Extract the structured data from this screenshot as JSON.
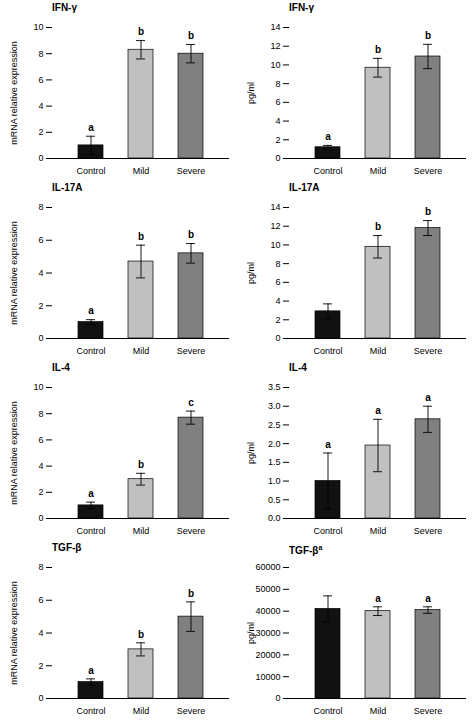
{
  "chart_data": [
    {
      "type": "bar",
      "title": "IFN-γ",
      "ylabel": "mRNA relative expression",
      "categories": [
        "Control",
        "Mild",
        "Severe"
      ],
      "values": [
        1.0,
        8.3,
        8.0
      ],
      "errors": [
        0.7,
        0.7,
        0.7
      ],
      "annotations": [
        "a",
        "b",
        "b"
      ],
      "colors": [
        "#111111",
        "#c0c0c0",
        "#808080"
      ],
      "ylim": [
        0,
        10
      ],
      "yticks": [
        0,
        2,
        4,
        6,
        8,
        10
      ]
    },
    {
      "type": "bar",
      "title": "IFN-γ",
      "ylabel": "pg/ml",
      "categories": [
        "Control",
        "Mild",
        "Severe"
      ],
      "values": [
        1.2,
        9.7,
        10.9
      ],
      "errors": [
        0.2,
        1.0,
        1.3
      ],
      "annotations": [
        "a",
        "b",
        "b"
      ],
      "colors": [
        "#111111",
        "#c0c0c0",
        "#808080"
      ],
      "ylim": [
        0,
        14
      ],
      "yticks": [
        0,
        2,
        4,
        6,
        8,
        10,
        12,
        14
      ]
    },
    {
      "type": "bar",
      "title": "IL-17A",
      "ylabel": "mRNA relative expression",
      "categories": [
        "Control",
        "Mild",
        "Severe"
      ],
      "values": [
        1.0,
        4.7,
        5.2
      ],
      "errors": [
        0.15,
        1.0,
        0.6
      ],
      "annotations": [
        "a",
        "b",
        "b"
      ],
      "colors": [
        "#111111",
        "#c0c0c0",
        "#808080"
      ],
      "ylim": [
        0,
        8
      ],
      "yticks": [
        0,
        2,
        4,
        6,
        8
      ]
    },
    {
      "type": "bar",
      "title": "IL-17A",
      "ylabel": "pg/ml",
      "categories": [
        "Control",
        "Mild",
        "Severe"
      ],
      "values": [
        2.9,
        9.8,
        11.8
      ],
      "errors": [
        0.8,
        1.2,
        0.8
      ],
      "annotations": [
        null,
        "b",
        "b"
      ],
      "colors": [
        "#111111",
        "#c0c0c0",
        "#808080"
      ],
      "ylim": [
        0,
        14
      ],
      "yticks": [
        0,
        2,
        4,
        6,
        8,
        10,
        12,
        14
      ]
    },
    {
      "type": "bar",
      "title": "IL-4",
      "ylabel": "mRNA relative expression",
      "categories": [
        "Control",
        "Mild",
        "Severe"
      ],
      "values": [
        1.0,
        3.0,
        7.7
      ],
      "errors": [
        0.25,
        0.45,
        0.5
      ],
      "annotations": [
        "a",
        "b",
        "c"
      ],
      "colors": [
        "#111111",
        "#c0c0c0",
        "#808080"
      ],
      "ylim": [
        0,
        10
      ],
      "yticks": [
        0,
        2,
        4,
        6,
        8,
        10
      ]
    },
    {
      "type": "bar",
      "title": "IL-4",
      "ylabel": "pg/ml",
      "categories": [
        "Control",
        "Mild",
        "Severe"
      ],
      "values": [
        1.0,
        1.95,
        2.65
      ],
      "errors": [
        0.75,
        0.7,
        0.35
      ],
      "annotations": [
        "a",
        "a",
        "a"
      ],
      "colors": [
        "#111111",
        "#c0c0c0",
        "#808080"
      ],
      "ylim": [
        0,
        3.5
      ],
      "yticks": [
        {
          "value": 0,
          "label": "0.0"
        },
        0.5,
        {
          "value": 1,
          "label": "1.0"
        },
        1.5,
        {
          "value": 2,
          "label": "2.0"
        },
        2.5,
        {
          "value": 3,
          "label": "3.0"
        },
        3.5
      ]
    },
    {
      "type": "bar",
      "title": "TGF-β",
      "ylabel": "mRNA relative expression",
      "categories": [
        "Control",
        "Mild",
        "Severe"
      ],
      "values": [
        1.0,
        3.0,
        5.0
      ],
      "errors": [
        0.2,
        0.4,
        0.9
      ],
      "annotations": [
        "a",
        "b",
        "b"
      ],
      "colors": [
        "#111111",
        "#c0c0c0",
        "#808080"
      ],
      "ylim": [
        0,
        8
      ],
      "yticks": [
        0,
        2,
        4,
        6,
        8
      ]
    },
    {
      "type": "bar",
      "title": "TGF-β",
      "title_superscript": "a",
      "ylabel": "pg/ml",
      "categories": [
        "Control",
        "Mild",
        "Severe"
      ],
      "values": [
        41000,
        40000,
        40500
      ],
      "errors": [
        6000,
        2000,
        1500
      ],
      "annotations": [
        null,
        "a",
        "a"
      ],
      "colors": [
        "#111111",
        "#c0c0c0",
        "#808080"
      ],
      "ylim": [
        0,
        60000
      ],
      "yticks": [
        0,
        10000,
        20000,
        30000,
        40000,
        50000,
        60000
      ]
    }
  ]
}
